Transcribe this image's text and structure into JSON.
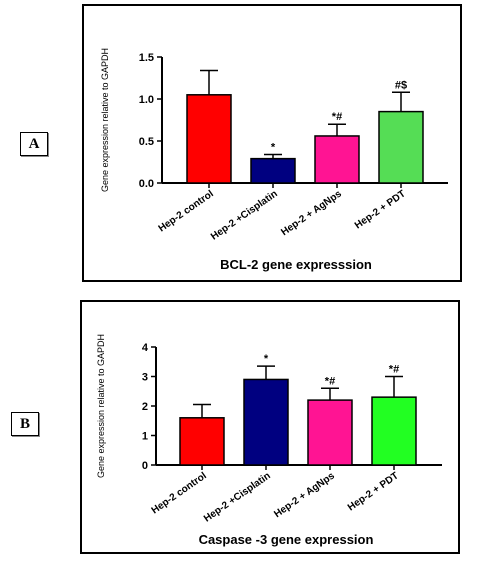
{
  "panels": [
    {
      "label": "A",
      "chart_data": {
        "type": "bar",
        "title": "BCL-2 gene expresssion",
        "ylabel": "Gene expression relative to GAPDH",
        "xlabel": "",
        "ylim": [
          0,
          1.5
        ],
        "yticks": [
          "0.0",
          "0.5",
          "1.0",
          "1.5"
        ],
        "categories": [
          "Hep-2 control",
          "Hep-2 +Cisplatin",
          "Hep-2 + AgNps",
          "Hep-2 + PDT"
        ],
        "values": [
          1.05,
          0.29,
          0.56,
          0.85
        ],
        "errors": [
          0.29,
          0.05,
          0.14,
          0.23
        ],
        "significance": [
          "",
          "*",
          "*#",
          "#$"
        ],
        "colors": [
          "#ff0000",
          "#000080",
          "#ff1493",
          "#55dd55"
        ],
        "grid": false,
        "legend": "none"
      }
    },
    {
      "label": "B",
      "chart_data": {
        "type": "bar",
        "title": "Caspase -3 gene expression",
        "ylabel": "Gene expression relative to GAPDH",
        "xlabel": "",
        "ylim": [
          0,
          4
        ],
        "yticks": [
          "0",
          "1",
          "2",
          "3",
          "4"
        ],
        "categories": [
          "Hep-2 control",
          "Hep-2 +Cisplatin",
          "Hep-2 + AgNps",
          "Hep-2 + PDT"
        ],
        "values": [
          1.6,
          2.9,
          2.2,
          2.3
        ],
        "errors": [
          0.45,
          0.45,
          0.4,
          0.7
        ],
        "significance": [
          "",
          "*",
          "*#",
          "*#"
        ],
        "colors": [
          "#ff0000",
          "#000080",
          "#ff1493",
          "#22ff22"
        ],
        "grid": false,
        "legend": "none"
      }
    }
  ]
}
